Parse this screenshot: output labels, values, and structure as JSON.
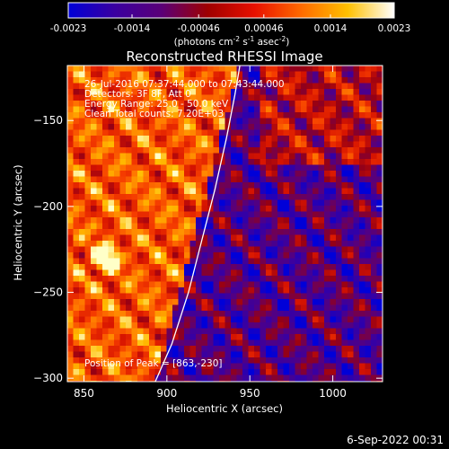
{
  "colorbar": {
    "ticks": [
      "-0.0023",
      "-0.0014",
      "-0.00046",
      "0.00046",
      "0.0014",
      "0.0023"
    ],
    "tick_values": [
      -0.0023,
      -0.0014,
      -0.00046,
      0.00046,
      0.0014,
      0.0023
    ],
    "range": [
      -0.0023,
      0.0023
    ],
    "units_prefix": "(photons cm",
    "units_exp1": "-2",
    "units_mid": " s",
    "units_exp2": "-1",
    "units_mid2": " asec",
    "units_exp3": "-2",
    "units_suffix": ")",
    "colors": [
      "#0000d8",
      "#3a00a0",
      "#5a0078",
      "#a00000",
      "#e81000",
      "#ff6a00",
      "#ffc000",
      "#ffffff"
    ]
  },
  "chart_data": {
    "type": "heatmap",
    "title": "Reconstructed RHESSI Image",
    "xlabel": "Heliocentric X (arcsec)",
    "ylabel": "Heliocentric Y (arcsec)",
    "xlim": [
      840,
      1030
    ],
    "ylim": [
      -302,
      -118
    ],
    "x_ticks": [
      850,
      900,
      950,
      1000
    ],
    "x_tick_labels": [
      "850",
      "900",
      "950",
      "1000"
    ],
    "y_ticks": [
      -150,
      -200,
      -250,
      -300
    ],
    "y_tick_labels": [
      "−150",
      "−200",
      "−250",
      "−300"
    ],
    "annotations": [
      "26-Jul-2016 07:37:44.000 to 07:43:44.000",
      "Detectors: 3F 8F, Att 0",
      "Energy Range: 25.0 - 50.0 keV",
      "Clean     Total counts: 7.20E+03"
    ],
    "peak_label": "Position of Peak = [863,-230]",
    "peak": [
      863,
      -230
    ],
    "limb_curve": [
      [
        893,
        -302
      ],
      [
        903,
        -280
      ],
      [
        913,
        -250
      ],
      [
        921,
        -220
      ],
      [
        929,
        -190
      ],
      [
        936,
        -160
      ],
      [
        941,
        -135
      ],
      [
        944,
        -118
      ]
    ]
  },
  "footer": {
    "date": "6-Sep-2022 00:31"
  }
}
